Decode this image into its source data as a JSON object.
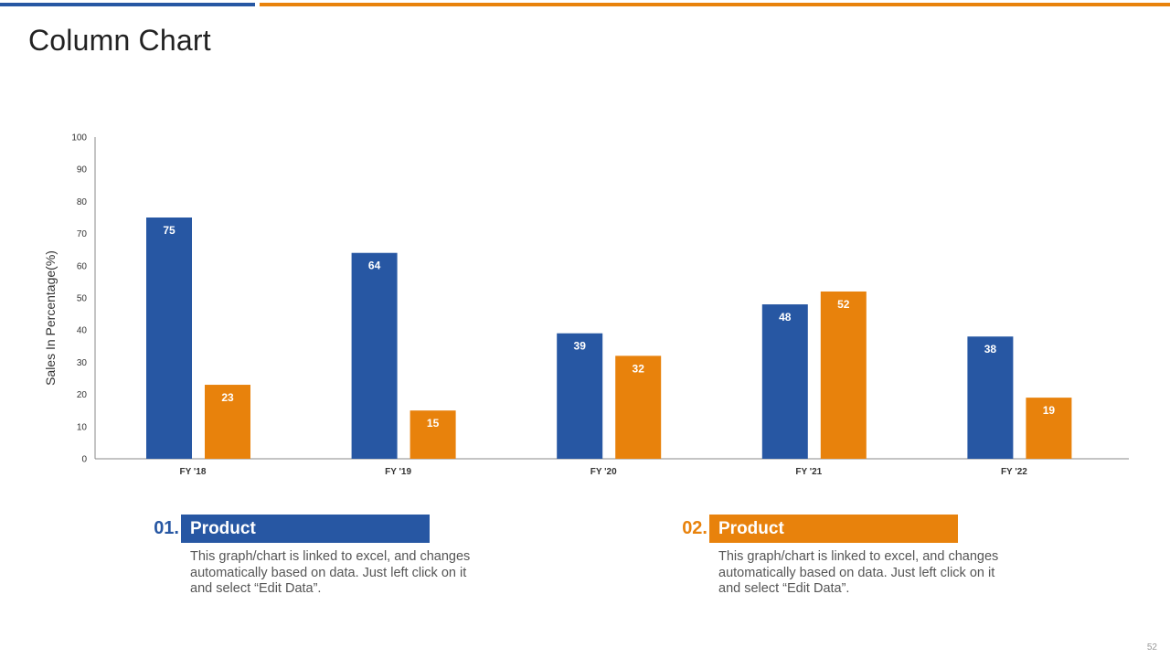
{
  "slide": {
    "title": "Column Chart",
    "page_number": "52"
  },
  "colors": {
    "blue": "#2757A3",
    "orange": "#E8820C",
    "axis": "#888888",
    "tick_text": "#333333"
  },
  "chart_data": {
    "type": "bar",
    "title": "",
    "xlabel": "",
    "ylabel": "Sales In Percentage(%)",
    "ylim": [
      0,
      100
    ],
    "yticks": [
      0,
      10,
      20,
      30,
      40,
      50,
      60,
      70,
      80,
      90,
      100
    ],
    "grid": false,
    "categories": [
      "FY '18",
      "FY '19",
      "FY '20",
      "FY '21",
      "FY '22"
    ],
    "series": [
      {
        "name": "Product 01",
        "color": "#2757A3",
        "values": [
          75,
          64,
          39,
          48,
          38
        ]
      },
      {
        "name": "Product 02",
        "color": "#E8820C",
        "values": [
          23,
          15,
          32,
          52,
          19
        ]
      }
    ]
  },
  "legend": [
    {
      "number": "01.",
      "label": "Product",
      "color": "#2757A3",
      "description": "This graph/chart is linked to excel, and changes automatically based on data. Just left click on it and select “Edit Data”."
    },
    {
      "number": "02.",
      "label": "Product",
      "color": "#E8820C",
      "description": "This graph/chart is linked to excel, and changes automatically based on data. Just left click on it and select “Edit Data”."
    }
  ]
}
